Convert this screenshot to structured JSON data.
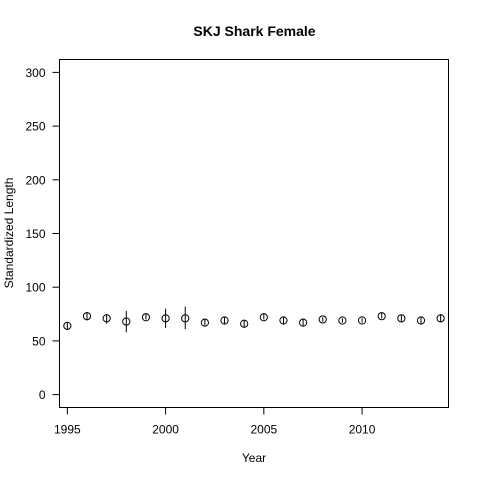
{
  "chart_data": {
    "type": "scatter",
    "title": "SKJ Shark Female",
    "xlabel": "Year",
    "ylabel": "Standardized Length",
    "xlim": [
      1994.6,
      2014.4
    ],
    "ylim": [
      -12,
      312
    ],
    "xticks": [
      1995,
      2000,
      2005,
      2010
    ],
    "yticks": [
      0,
      50,
      100,
      150,
      200,
      250,
      300
    ],
    "grid": false,
    "marker": "open-circle-with-error-bar",
    "series": [
      {
        "x": [
          1995,
          1996,
          1997,
          1998,
          1999,
          2000,
          2001,
          2002,
          2003,
          2004,
          2005,
          2006,
          2007,
          2008,
          2009,
          2010,
          2011,
          2012,
          2013,
          2014
        ],
        "y": [
          64,
          73,
          71,
          68,
          72,
          71,
          71,
          67,
          69,
          66,
          72,
          69,
          67,
          70,
          69,
          69,
          73,
          71,
          69,
          71
        ],
        "lower": [
          61,
          69,
          66,
          58,
          70,
          62,
          61,
          64,
          66,
          63,
          70,
          66,
          64,
          68,
          67,
          67,
          71,
          68,
          66,
          68
        ],
        "upper": [
          67,
          77,
          75,
          78,
          75,
          80,
          82,
          70,
          72,
          69,
          75,
          72,
          70,
          72,
          71,
          71,
          76,
          74,
          72,
          75
        ]
      }
    ]
  }
}
